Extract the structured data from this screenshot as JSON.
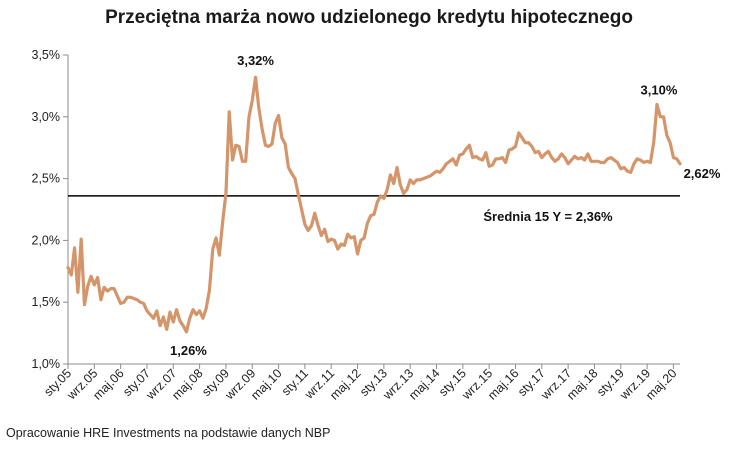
{
  "chart_data": {
    "type": "line",
    "title": "Przeciętna marża nowo udzielonego kredytu hipotecznego",
    "xlabel": "",
    "ylabel": "",
    "ylim": [
      0.01,
      0.035
    ],
    "y_ticks": [
      {
        "value": 0.035,
        "label": "3,5%"
      },
      {
        "value": 0.03,
        "label": "3,0%"
      },
      {
        "value": 0.025,
        "label": "2,5%"
      },
      {
        "value": 0.02,
        "label": "2,0%"
      },
      {
        "value": 0.015,
        "label": "1,5%"
      },
      {
        "value": 0.01,
        "label": "1,0%"
      }
    ],
    "x_start": {
      "year": 2005,
      "month": 1
    },
    "x_end": {
      "year": 2020,
      "month": 7
    },
    "x_ticks": [
      {
        "label": "sty.05",
        "year": 2005,
        "month": 1
      },
      {
        "label": "wrz.05",
        "year": 2005,
        "month": 9
      },
      {
        "label": "maj.06",
        "year": 2006,
        "month": 5
      },
      {
        "label": "sty.07",
        "year": 2007,
        "month": 1
      },
      {
        "label": "wrz.07",
        "year": 2007,
        "month": 9
      },
      {
        "label": "maj.08",
        "year": 2008,
        "month": 5
      },
      {
        "label": "sty.09",
        "year": 2009,
        "month": 1
      },
      {
        "label": "wrz.09",
        "year": 2009,
        "month": 9
      },
      {
        "label": "maj.10",
        "year": 2010,
        "month": 5
      },
      {
        "label": "sty.11",
        "year": 2011,
        "month": 1
      },
      {
        "label": "wrz.11",
        "year": 2011,
        "month": 9
      },
      {
        "label": "maj.12",
        "year": 2012,
        "month": 5
      },
      {
        "label": "sty.13",
        "year": 2013,
        "month": 1
      },
      {
        "label": "wrz.13",
        "year": 2013,
        "month": 9
      },
      {
        "label": "maj.14",
        "year": 2014,
        "month": 5
      },
      {
        "label": "sty.15",
        "year": 2015,
        "month": 1
      },
      {
        "label": "wrz.15",
        "year": 2015,
        "month": 9
      },
      {
        "label": "maj.16",
        "year": 2016,
        "month": 5
      },
      {
        "label": "sty.17",
        "year": 2017,
        "month": 1
      },
      {
        "label": "wrz.17",
        "year": 2017,
        "month": 9
      },
      {
        "label": "maj.18",
        "year": 2018,
        "month": 5
      },
      {
        "label": "sty.19",
        "year": 2019,
        "month": 1
      },
      {
        "label": "wrz.19",
        "year": 2019,
        "month": 9
      },
      {
        "label": "maj.20",
        "year": 2020,
        "month": 5
      }
    ],
    "series": [
      {
        "color": "#d4956a",
        "points": [
          [
            "2005-01",
            0.0178
          ],
          [
            "2005-02",
            0.0172
          ],
          [
            "2005-03",
            0.0194
          ],
          [
            "2005-04",
            0.0158
          ],
          [
            "2005-05",
            0.0201
          ],
          [
            "2005-06",
            0.0148
          ],
          [
            "2005-07",
            0.0163
          ],
          [
            "2005-08",
            0.0171
          ],
          [
            "2005-09",
            0.0164
          ],
          [
            "2005-10",
            0.017
          ],
          [
            "2005-11",
            0.0152
          ],
          [
            "2005-12",
            0.0162
          ],
          [
            "2006-01",
            0.0159
          ],
          [
            "2006-02",
            0.0161
          ],
          [
            "2006-03",
            0.0161
          ],
          [
            "2006-04",
            0.0155
          ],
          [
            "2006-05",
            0.0149
          ],
          [
            "2006-06",
            0.015
          ],
          [
            "2006-07",
            0.0154
          ],
          [
            "2006-08",
            0.0154
          ],
          [
            "2006-09",
            0.0153
          ],
          [
            "2006-10",
            0.0152
          ],
          [
            "2006-11",
            0.015
          ],
          [
            "2006-12",
            0.0149
          ],
          [
            "2007-01",
            0.0143
          ],
          [
            "2007-02",
            0.014
          ],
          [
            "2007-03",
            0.0137
          ],
          [
            "2007-04",
            0.0143
          ],
          [
            "2007-05",
            0.0131
          ],
          [
            "2007-06",
            0.0138
          ],
          [
            "2007-07",
            0.0128
          ],
          [
            "2007-08",
            0.0142
          ],
          [
            "2007-09",
            0.0134
          ],
          [
            "2007-10",
            0.0144
          ],
          [
            "2007-11",
            0.0135
          ],
          [
            "2007-12",
            0.0131
          ],
          [
            "2008-01",
            0.0126
          ],
          [
            "2008-02",
            0.0137
          ],
          [
            "2008-03",
            0.0144
          ],
          [
            "2008-04",
            0.014
          ],
          [
            "2008-05",
            0.0143
          ],
          [
            "2008-06",
            0.0137
          ],
          [
            "2008-07",
            0.0145
          ],
          [
            "2008-08",
            0.016
          ],
          [
            "2008-09",
            0.0193
          ],
          [
            "2008-10",
            0.0202
          ],
          [
            "2008-11",
            0.0188
          ],
          [
            "2008-12",
            0.0215
          ],
          [
            "2009-01",
            0.0238
          ],
          [
            "2009-02",
            0.0304
          ],
          [
            "2009-03",
            0.0265
          ],
          [
            "2009-04",
            0.0277
          ],
          [
            "2009-05",
            0.0276
          ],
          [
            "2009-06",
            0.0264
          ],
          [
            "2009-07",
            0.0264
          ],
          [
            "2009-08",
            0.03
          ],
          [
            "2009-09",
            0.0313
          ],
          [
            "2009-10",
            0.0332
          ],
          [
            "2009-11",
            0.0307
          ],
          [
            "2009-12",
            0.029
          ],
          [
            "2010-01",
            0.0277
          ],
          [
            "2010-02",
            0.0276
          ],
          [
            "2010-03",
            0.0278
          ],
          [
            "2010-04",
            0.0295
          ],
          [
            "2010-05",
            0.0301
          ],
          [
            "2010-06",
            0.0283
          ],
          [
            "2010-07",
            0.0278
          ],
          [
            "2010-08",
            0.0259
          ],
          [
            "2010-09",
            0.0254
          ],
          [
            "2010-10",
            0.025
          ],
          [
            "2010-11",
            0.0237
          ],
          [
            "2010-12",
            0.0225
          ],
          [
            "2011-01",
            0.0213
          ],
          [
            "2011-02",
            0.0208
          ],
          [
            "2011-03",
            0.0212
          ],
          [
            "2011-04",
            0.0222
          ],
          [
            "2011-05",
            0.0212
          ],
          [
            "2011-06",
            0.0204
          ],
          [
            "2011-07",
            0.0209
          ],
          [
            "2011-08",
            0.0199
          ],
          [
            "2011-09",
            0.0201
          ],
          [
            "2011-10",
            0.02
          ],
          [
            "2011-11",
            0.0193
          ],
          [
            "2011-12",
            0.0197
          ],
          [
            "2012-01",
            0.0196
          ],
          [
            "2012-02",
            0.0205
          ],
          [
            "2012-03",
            0.0202
          ],
          [
            "2012-04",
            0.0203
          ],
          [
            "2012-05",
            0.0189
          ],
          [
            "2012-06",
            0.02
          ],
          [
            "2012-07",
            0.0202
          ],
          [
            "2012-08",
            0.0214
          ],
          [
            "2012-09",
            0.022
          ],
          [
            "2012-10",
            0.0221
          ],
          [
            "2012-11",
            0.0231
          ],
          [
            "2012-12",
            0.0236
          ],
          [
            "2013-01",
            0.0234
          ],
          [
            "2013-02",
            0.0241
          ],
          [
            "2013-03",
            0.0253
          ],
          [
            "2013-04",
            0.0246
          ],
          [
            "2013-05",
            0.0259
          ],
          [
            "2013-06",
            0.0245
          ],
          [
            "2013-07",
            0.0238
          ],
          [
            "2013-08",
            0.0241
          ],
          [
            "2013-09",
            0.0249
          ],
          [
            "2013-10",
            0.0246
          ],
          [
            "2013-11",
            0.0249
          ],
          [
            "2013-12",
            0.0249
          ],
          [
            "2014-01",
            0.025
          ],
          [
            "2014-02",
            0.0251
          ],
          [
            "2014-03",
            0.0252
          ],
          [
            "2014-04",
            0.0254
          ],
          [
            "2014-05",
            0.0256
          ],
          [
            "2014-06",
            0.0255
          ],
          [
            "2014-07",
            0.0258
          ],
          [
            "2014-08",
            0.0262
          ],
          [
            "2014-09",
            0.0264
          ],
          [
            "2014-10",
            0.0266
          ],
          [
            "2014-11",
            0.0261
          ],
          [
            "2014-12",
            0.0269
          ],
          [
            "2015-01",
            0.027
          ],
          [
            "2015-02",
            0.0274
          ],
          [
            "2015-03",
            0.0277
          ],
          [
            "2015-04",
            0.0267
          ],
          [
            "2015-05",
            0.0268
          ],
          [
            "2015-06",
            0.0266
          ],
          [
            "2015-07",
            0.0265
          ],
          [
            "2015-08",
            0.0271
          ],
          [
            "2015-09",
            0.026
          ],
          [
            "2015-10",
            0.0261
          ],
          [
            "2015-11",
            0.0266
          ],
          [
            "2015-12",
            0.0266
          ],
          [
            "2016-01",
            0.0267
          ],
          [
            "2016-02",
            0.0263
          ],
          [
            "2016-03",
            0.0273
          ],
          [
            "2016-04",
            0.0274
          ],
          [
            "2016-05",
            0.0276
          ],
          [
            "2016-06",
            0.0287
          ],
          [
            "2016-07",
            0.0283
          ],
          [
            "2016-08",
            0.0279
          ],
          [
            "2016-09",
            0.0279
          ],
          [
            "2016-10",
            0.0276
          ],
          [
            "2016-11",
            0.0271
          ],
          [
            "2016-12",
            0.0272
          ],
          [
            "2017-01",
            0.0267
          ],
          [
            "2017-02",
            0.027
          ],
          [
            "2017-03",
            0.0272
          ],
          [
            "2017-04",
            0.0267
          ],
          [
            "2017-05",
            0.0264
          ],
          [
            "2017-06",
            0.0266
          ],
          [
            "2017-07",
            0.027
          ],
          [
            "2017-08",
            0.0267
          ],
          [
            "2017-09",
            0.0262
          ],
          [
            "2017-10",
            0.0265
          ],
          [
            "2017-11",
            0.0268
          ],
          [
            "2017-12",
            0.0266
          ],
          [
            "2018-01",
            0.0267
          ],
          [
            "2018-02",
            0.0265
          ],
          [
            "2018-03",
            0.027
          ],
          [
            "2018-04",
            0.0264
          ],
          [
            "2018-05",
            0.0264
          ],
          [
            "2018-06",
            0.0264
          ],
          [
            "2018-07",
            0.0263
          ],
          [
            "2018-08",
            0.0263
          ],
          [
            "2018-09",
            0.0266
          ],
          [
            "2018-10",
            0.0267
          ],
          [
            "2018-11",
            0.0265
          ],
          [
            "2018-12",
            0.0263
          ],
          [
            "2019-01",
            0.0258
          ],
          [
            "2019-02",
            0.0259
          ],
          [
            "2019-03",
            0.0256
          ],
          [
            "2019-04",
            0.0255
          ],
          [
            "2019-05",
            0.0262
          ],
          [
            "2019-06",
            0.0266
          ],
          [
            "2019-07",
            0.0265
          ],
          [
            "2019-08",
            0.0263
          ],
          [
            "2019-09",
            0.0264
          ],
          [
            "2019-10",
            0.0263
          ],
          [
            "2019-11",
            0.0279
          ],
          [
            "2019-12",
            0.031
          ],
          [
            "2020-01",
            0.03
          ],
          [
            "2020-02",
            0.03
          ],
          [
            "2020-03",
            0.0285
          ],
          [
            "2020-04",
            0.0279
          ],
          [
            "2020-05",
            0.0267
          ],
          [
            "2020-06",
            0.0266
          ],
          [
            "2020-07",
            0.0262
          ]
        ]
      }
    ],
    "reference_line": {
      "value": 0.0236,
      "label": "Średnia 15 Y = 2,36%",
      "color": "#000000"
    },
    "annotations": [
      {
        "text": "3,32%",
        "x": "2009-10",
        "y": 0.0332
      },
      {
        "text": "1,26%",
        "x": "2008-01",
        "y": 0.0126
      },
      {
        "text": "3,10%",
        "x": "2019-12",
        "y": 0.031
      },
      {
        "text": "2,62%",
        "x": "2020-07",
        "y": 0.0262
      }
    ],
    "grid": false,
    "legend": "none"
  },
  "footer": {
    "source": "Opracowanie HRE Investments na podstawie danych NBP"
  }
}
